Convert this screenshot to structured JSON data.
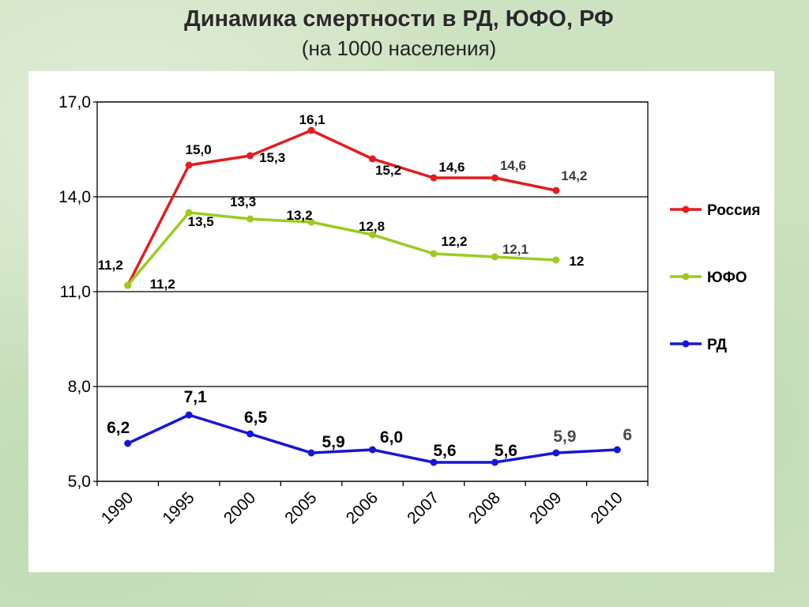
{
  "title": "Динамика  смертности в РД, ЮФО, РФ",
  "subtitle": "(на 1000 населения)",
  "chart_data": {
    "type": "line",
    "title": "Динамика  смертности в РД, ЮФО, РФ",
    "subtitle": "(на 1000 населения)",
    "xlabel": "",
    "ylabel": "",
    "categories": [
      "1990",
      "1995",
      "2000",
      "2005",
      "2006",
      "2007",
      "2008",
      "2009",
      "2010"
    ],
    "ylim": [
      5.0,
      17.0
    ],
    "yticks": [
      "5,0",
      "8,0",
      "11,0",
      "14,0",
      "17,0"
    ],
    "grid": "horizontal",
    "legend": "right",
    "series": [
      {
        "name": "Россия",
        "color": "#e21d1d",
        "values": [
          11.2,
          15.0,
          15.3,
          16.1,
          15.2,
          14.6,
          14.6,
          14.2,
          null
        ],
        "labels": [
          "11,2",
          "15,0",
          "15,3",
          "16,1",
          "15,2",
          "14,6",
          "14,6",
          "14,2",
          null
        ]
      },
      {
        "name": "ЮФО",
        "color": "#99cc1f",
        "values": [
          11.2,
          13.5,
          13.3,
          13.2,
          12.8,
          12.2,
          12.1,
          12,
          null
        ],
        "labels": [
          "11,2",
          "13,5",
          "13,3",
          "13,2",
          "12,8",
          "12,2",
          "12,1",
          "12",
          null
        ]
      },
      {
        "name": "РД",
        "color": "#1616d6",
        "values": [
          6.2,
          7.1,
          6.5,
          5.9,
          6.0,
          5.6,
          5.6,
          5.9,
          6
        ],
        "labels": [
          "6,2",
          "7,1",
          "6,5",
          "5,9",
          "6,0",
          "5,6",
          "5,6",
          "5,9",
          "6"
        ]
      }
    ]
  }
}
